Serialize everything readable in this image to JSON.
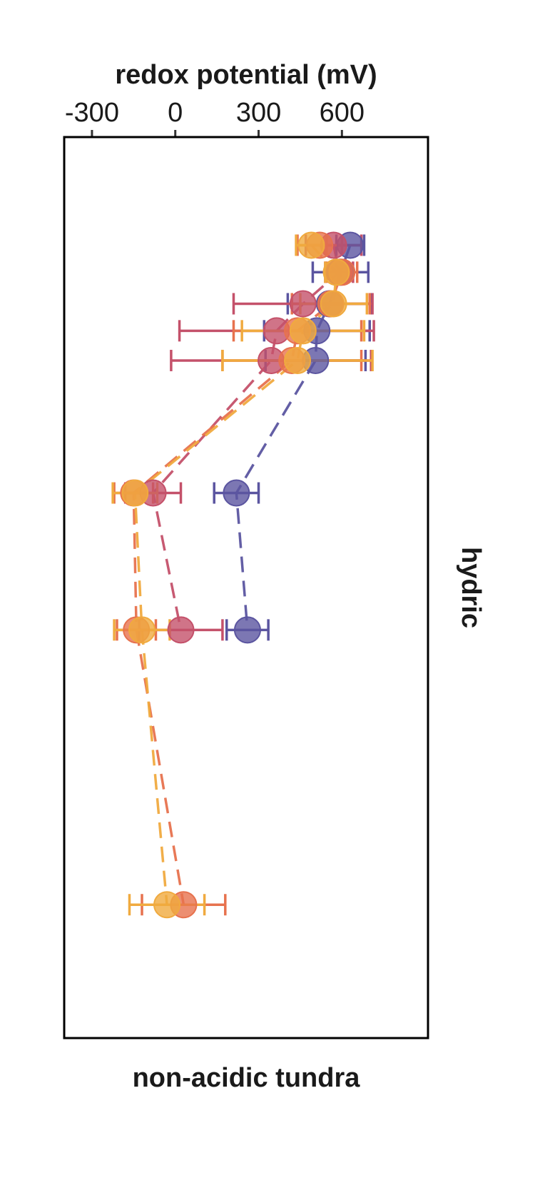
{
  "chart_data": {
    "type": "scatter",
    "title": "",
    "xlabel": "redox potential (mV)",
    "bottom_label": "non-acidic tundra",
    "facet_label": "hydric",
    "xlim": [
      -400,
      910
    ],
    "ylim": [
      0,
      1000
    ],
    "y_reversed": true,
    "grid": false,
    "legend": "none",
    "x_ticks": [
      -300,
      0,
      300,
      600
    ],
    "x_tick_labels": [
      "-300",
      "0",
      "300",
      "600"
    ],
    "series": [
      {
        "color": "#5b55a0",
        "points": [
          {
            "x": 630,
            "y": 120,
            "err": 50
          },
          {
            "x": 595,
            "y": 150,
            "err": 100
          },
          {
            "x": 555,
            "y": 185,
            "err": 150
          },
          {
            "x": 510,
            "y": 215,
            "err": 190
          },
          {
            "x": 505,
            "y": 248,
            "err": 180
          },
          {
            "x": 220,
            "y": 395,
            "err": 80
          },
          {
            "x": 260,
            "y": 547,
            "err": 75
          }
        ]
      },
      {
        "color": "#c4516a",
        "points": [
          {
            "x": 570,
            "y": 120,
            "err": 100
          },
          {
            "x": 590,
            "y": 150,
            "err": 50
          },
          {
            "x": 460,
            "y": 185,
            "err": 250
          },
          {
            "x": 365,
            "y": 215,
            "err": 350
          },
          {
            "x": 345,
            "y": 248,
            "err": 360
          },
          {
            "x": -80,
            "y": 395,
            "err": 100
          },
          {
            "x": 20,
            "y": 547,
            "err": 150
          }
        ]
      },
      {
        "color": "#e7724e",
        "points": [
          {
            "x": 520,
            "y": 120,
            "err": 80
          },
          {
            "x": 600,
            "y": 150,
            "err": 55
          },
          {
            "x": 560,
            "y": 185,
            "err": 140
          },
          {
            "x": 440,
            "y": 215,
            "err": 230
          },
          {
            "x": 420,
            "y": 248,
            "err": 250
          },
          {
            "x": -150,
            "y": 395,
            "err": 70
          },
          {
            "x": -140,
            "y": 547,
            "err": 70
          },
          {
            "x": 30,
            "y": 852,
            "err": 150
          }
        ]
      },
      {
        "color": "#f0aa3f",
        "points": [
          {
            "x": 490,
            "y": 120,
            "err": 55
          },
          {
            "x": 580,
            "y": 150,
            "err": 40
          },
          {
            "x": 570,
            "y": 185,
            "err": 120
          },
          {
            "x": 460,
            "y": 215,
            "err": 220
          },
          {
            "x": 440,
            "y": 248,
            "err": 270
          },
          {
            "x": -145,
            "y": 395,
            "err": 80
          },
          {
            "x": -120,
            "y": 547,
            "err": 100
          },
          {
            "x": -30,
            "y": 852,
            "err": 135
          }
        ]
      }
    ]
  }
}
